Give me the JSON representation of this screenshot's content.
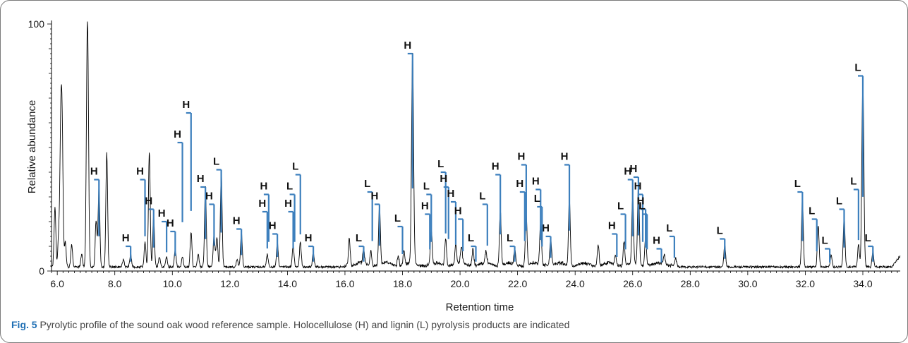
{
  "chart_data": {
    "type": "line",
    "xlabel": "Retention time",
    "ylabel": "Relative abundance",
    "xlim": [
      5.8,
      35.3
    ],
    "ylim": [
      0,
      100
    ],
    "x_ticks": [
      "6.0",
      "8.0",
      "10.0",
      "12.0",
      "14.0",
      "16.0",
      "18.0",
      "20.0",
      "22.0",
      "24.0",
      "26.0",
      "28.0",
      "30.0",
      "32.0",
      "34.0"
    ],
    "y_ticks": [
      "0",
      "100"
    ],
    "line_color": "#000000",
    "marker_color": "#3c7fbd",
    "peaks": [
      {
        "x": 5.92,
        "y": 24
      },
      {
        "x": 6.05,
        "y": 12
      },
      {
        "x": 6.13,
        "y": 62
      },
      {
        "x": 6.18,
        "y": 34
      },
      {
        "x": 6.28,
        "y": 10
      },
      {
        "x": 6.5,
        "y": 9
      },
      {
        "x": 6.85,
        "y": 5
      },
      {
        "x": 7.05,
        "y": 101
      },
      {
        "x": 7.35,
        "y": 19
      },
      {
        "x": 7.45,
        "y": 33
      },
      {
        "x": 7.72,
        "y": 46
      },
      {
        "x": 8.3,
        "y": 3
      },
      {
        "x": 8.55,
        "y": 5
      },
      {
        "x": 9.05,
        "y": 10
      },
      {
        "x": 9.2,
        "y": 47
      },
      {
        "x": 9.35,
        "y": 21
      },
      {
        "x": 9.55,
        "y": 4
      },
      {
        "x": 9.8,
        "y": 4
      },
      {
        "x": 10.1,
        "y": 7
      },
      {
        "x": 10.35,
        "y": 4
      },
      {
        "x": 10.65,
        "y": 14
      },
      {
        "x": 10.9,
        "y": 5
      },
      {
        "x": 11.15,
        "y": 33
      },
      {
        "x": 11.45,
        "y": 13
      },
      {
        "x": 11.55,
        "y": 12
      },
      {
        "x": 11.7,
        "y": 39
      },
      {
        "x": 12.25,
        "y": 3
      },
      {
        "x": 12.4,
        "y": 14
      },
      {
        "x": 13.3,
        "y": 5
      },
      {
        "x": 13.65,
        "y": 10
      },
      {
        "x": 14.2,
        "y": 9
      },
      {
        "x": 14.45,
        "y": 10
      },
      {
        "x": 14.9,
        "y": 6
      },
      {
        "x": 16.15,
        "y": 11
      },
      {
        "x": 16.65,
        "y": 6
      },
      {
        "x": 16.9,
        "y": 6
      },
      {
        "x": 17.2,
        "y": 24
      },
      {
        "x": 17.85,
        "y": 4
      },
      {
        "x": 18.05,
        "y": 6
      },
      {
        "x": 18.35,
        "y": 85
      },
      {
        "x": 19.0,
        "y": 14
      },
      {
        "x": 19.5,
        "y": 11
      },
      {
        "x": 19.85,
        "y": 8
      },
      {
        "x": 20.05,
        "y": 7
      },
      {
        "x": 20.45,
        "y": 7
      },
      {
        "x": 20.9,
        "y": 5
      },
      {
        "x": 21.4,
        "y": 23
      },
      {
        "x": 21.9,
        "y": 6
      },
      {
        "x": 22.3,
        "y": 21
      },
      {
        "x": 22.8,
        "y": 17
      },
      {
        "x": 23.15,
        "y": 11
      },
      {
        "x": 23.8,
        "y": 28
      },
      {
        "x": 24.8,
        "y": 9
      },
      {
        "x": 25.4,
        "y": 4
      },
      {
        "x": 25.7,
        "y": 10
      },
      {
        "x": 26.0,
        "y": 27
      },
      {
        "x": 26.2,
        "y": 32
      },
      {
        "x": 26.45,
        "y": 12
      },
      {
        "x": 27.1,
        "y": 4
      },
      {
        "x": 27.5,
        "y": 3
      },
      {
        "x": 29.2,
        "y": 9
      },
      {
        "x": 31.9,
        "y": 28
      },
      {
        "x": 32.45,
        "y": 17
      },
      {
        "x": 32.9,
        "y": 5
      },
      {
        "x": 33.35,
        "y": 21
      },
      {
        "x": 33.85,
        "y": 9
      },
      {
        "x": 34.0,
        "y": 75
      },
      {
        "x": 34.35,
        "y": 6
      }
    ],
    "annotations": [
      {
        "label": "H",
        "x": 7.45,
        "top": 37
      },
      {
        "label": "H",
        "x": 8.55,
        "top": 10
      },
      {
        "label": "H",
        "x": 9.05,
        "top": 37
      },
      {
        "label": "H",
        "x": 9.35,
        "top": 25
      },
      {
        "label": "H",
        "x": 9.8,
        "top": 20
      },
      {
        "label": "H",
        "x": 10.1,
        "top": 16
      },
      {
        "label": "H",
        "x": 10.35,
        "top": 52
      },
      {
        "label": "H",
        "x": 10.65,
        "top": 64
      },
      {
        "label": "H",
        "x": 11.15,
        "top": 34
      },
      {
        "label": "L",
        "x": 11.7,
        "top": 41
      },
      {
        "label": "H",
        "x": 11.45,
        "top": 27
      },
      {
        "label": "H",
        "x": 12.4,
        "top": 17
      },
      {
        "label": "H",
        "x": 13.35,
        "top": 31
      },
      {
        "label": "H",
        "x": 13.3,
        "top": 24
      },
      {
        "label": "H",
        "x": 13.65,
        "top": 15
      },
      {
        "label": "L",
        "x": 14.25,
        "top": 31
      },
      {
        "label": "H",
        "x": 14.2,
        "top": 24
      },
      {
        "label": "L",
        "x": 14.45,
        "top": 39
      },
      {
        "label": "H",
        "x": 14.9,
        "top": 10
      },
      {
        "label": "L",
        "x": 16.65,
        "top": 10
      },
      {
        "label": "L",
        "x": 16.95,
        "top": 32
      },
      {
        "label": "H",
        "x": 17.2,
        "top": 27
      },
      {
        "label": "L",
        "x": 18.0,
        "top": 18
      },
      {
        "label": "H",
        "x": 18.35,
        "top": 88
      },
      {
        "label": "L",
        "x": 19.0,
        "top": 31
      },
      {
        "label": "H",
        "x": 18.95,
        "top": 23
      },
      {
        "label": "L",
        "x": 19.5,
        "top": 40
      },
      {
        "label": "H",
        "x": 19.6,
        "top": 34
      },
      {
        "label": "H",
        "x": 19.85,
        "top": 28
      },
      {
        "label": "H",
        "x": 20.1,
        "top": 21
      },
      {
        "label": "L",
        "x": 20.55,
        "top": 10
      },
      {
        "label": "L",
        "x": 20.95,
        "top": 27
      },
      {
        "label": "H",
        "x": 21.4,
        "top": 39
      },
      {
        "label": "L",
        "x": 21.9,
        "top": 10
      },
      {
        "label": "H",
        "x": 22.25,
        "top": 32
      },
      {
        "label": "H",
        "x": 22.3,
        "top": 43
      },
      {
        "label": "H",
        "x": 22.8,
        "top": 33
      },
      {
        "label": "H",
        "x": 23.15,
        "top": 14
      },
      {
        "label": "L",
        "x": 22.85,
        "top": 26
      },
      {
        "label": "H",
        "x": 23.8,
        "top": 43
      },
      {
        "label": "H",
        "x": 25.45,
        "top": 15
      },
      {
        "label": "L",
        "x": 25.75,
        "top": 23
      },
      {
        "label": "H",
        "x": 26.0,
        "top": 37
      },
      {
        "label": "H",
        "x": 26.2,
        "top": 38
      },
      {
        "label": "H",
        "x": 26.35,
        "top": 31
      },
      {
        "label": "H",
        "x": 26.45,
        "top": 25
      },
      {
        "label": "L",
        "x": 26.5,
        "top": 23
      },
      {
        "label": "H",
        "x": 27.0,
        "top": 9
      },
      {
        "label": "L",
        "x": 27.45,
        "top": 14
      },
      {
        "label": "L",
        "x": 29.2,
        "top": 13
      },
      {
        "label": "L",
        "x": 31.9,
        "top": 32
      },
      {
        "label": "L",
        "x": 32.4,
        "top": 21
      },
      {
        "label": "L",
        "x": 32.85,
        "top": 9
      },
      {
        "label": "L",
        "x": 33.35,
        "top": 25
      },
      {
        "label": "L",
        "x": 33.85,
        "top": 33
      },
      {
        "label": "L",
        "x": 34.0,
        "top": 79
      },
      {
        "label": "L",
        "x": 34.35,
        "top": 10
      }
    ]
  },
  "caption": {
    "fig": "Fig. 5",
    "text": "Pyrolytic profile of the sound oak wood reference sample. Holocellulose (H) and lignin (L) pyrolysis products are indicated"
  }
}
